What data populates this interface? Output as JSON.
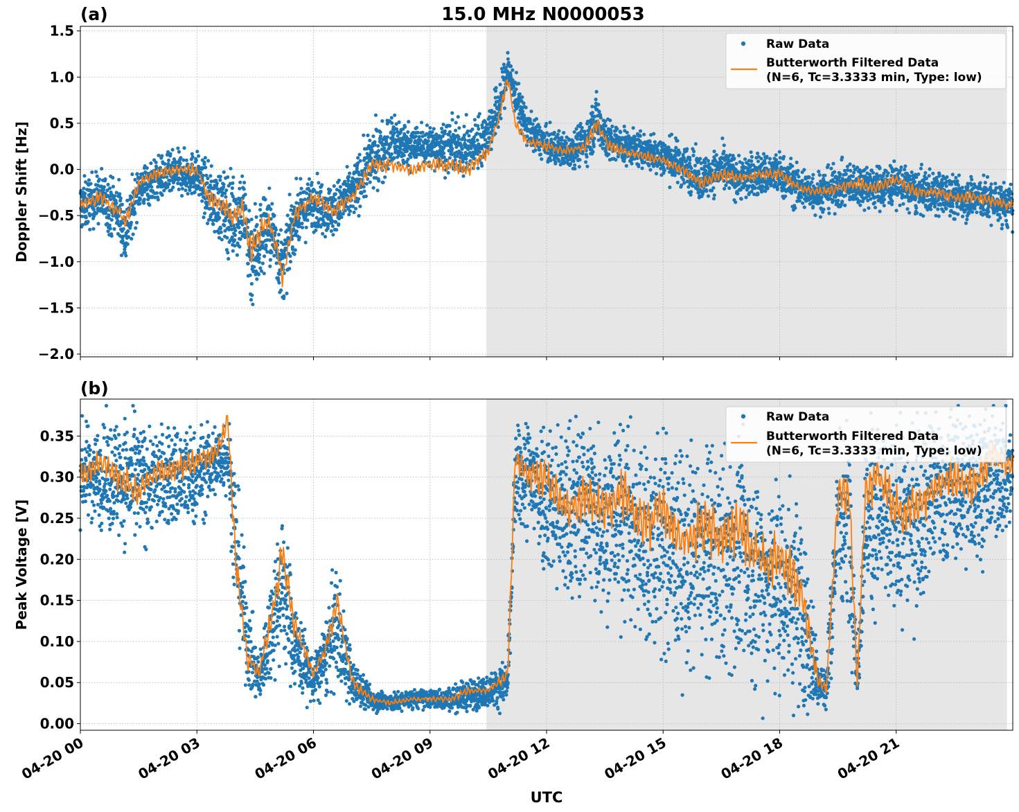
{
  "figure": {
    "title": "15.0 MHz N0000053",
    "xlabel": "UTC"
  },
  "colors": {
    "raw": "#1f77b4",
    "filtered": "#ff7f0e",
    "shade": "#e6e6e6",
    "grid": "#b0b0b0"
  },
  "chart_data": [
    {
      "type": "scatter",
      "panel_label": "(a)",
      "ylabel": "Doppler Shift [Hz]",
      "xlim_hours": [
        0,
        24.0
      ],
      "ylim": [
        -2.03,
        1.55
      ],
      "x_ticks": [
        {
          "h": 0,
          "label": "04-20 00"
        },
        {
          "h": 3,
          "label": "04-20 03"
        },
        {
          "h": 6,
          "label": "04-20 06"
        },
        {
          "h": 9,
          "label": "04-20 09"
        },
        {
          "h": 12,
          "label": "04-20 12"
        },
        {
          "h": 15,
          "label": "04-20 15"
        },
        {
          "h": 18,
          "label": "04-20 18"
        },
        {
          "h": 21,
          "label": "04-20 21"
        }
      ],
      "y_ticks": [
        {
          "v": -2.0,
          "label": "−2.0"
        },
        {
          "v": -1.5,
          "label": "−1.5"
        },
        {
          "v": -1.0,
          "label": "−1.0"
        },
        {
          "v": -0.5,
          "label": "−0.5"
        },
        {
          "v": 0.0,
          "label": "0.0"
        },
        {
          "v": 0.5,
          "label": "0.5"
        },
        {
          "v": 1.0,
          "label": "1.0"
        },
        {
          "v": 1.5,
          "label": "1.5"
        }
      ],
      "shaded_span_hours": [
        10.45,
        23.85
      ],
      "series": [
        {
          "name": "Raw Data",
          "kind": "points",
          "x_hours": [
            0.0,
            0.5,
            1.0,
            1.15,
            1.5,
            2.0,
            2.5,
            3.0,
            3.3,
            3.6,
            3.9,
            4.2,
            4.4,
            4.6,
            4.8,
            5.0,
            5.2,
            5.5,
            6.0,
            6.5,
            7.0,
            7.5,
            8.0,
            8.5,
            9.0,
            9.5,
            10.0,
            10.5,
            10.8,
            11.0,
            11.2,
            11.5,
            12.0,
            12.5,
            13.0,
            13.3,
            13.6,
            14.0,
            14.5,
            15.0,
            15.5,
            16.0,
            16.5,
            17.0,
            17.5,
            18.0,
            18.5,
            19.0,
            19.5,
            20.0,
            20.5,
            21.0,
            21.5,
            22.0,
            22.5,
            23.0,
            23.5,
            24.0
          ],
          "center": [
            -0.4,
            -0.3,
            -0.45,
            -0.7,
            -0.2,
            -0.1,
            -0.05,
            -0.05,
            -0.3,
            -0.4,
            -0.5,
            -0.45,
            -0.95,
            -0.8,
            -0.6,
            -0.75,
            -1.1,
            -0.55,
            -0.35,
            -0.45,
            -0.25,
            0.1,
            0.3,
            0.25,
            0.25,
            0.25,
            0.2,
            0.4,
            0.7,
            1.1,
            0.8,
            0.45,
            0.25,
            0.2,
            0.3,
            0.55,
            0.3,
            0.25,
            0.2,
            0.15,
            0.05,
            -0.1,
            0.0,
            -0.1,
            -0.05,
            -0.05,
            -0.2,
            -0.25,
            -0.2,
            -0.15,
            -0.2,
            -0.15,
            -0.25,
            -0.25,
            -0.3,
            -0.3,
            -0.35,
            -0.4
          ],
          "spread": [
            0.3,
            0.3,
            0.35,
            0.4,
            0.25,
            0.25,
            0.25,
            0.25,
            0.35,
            0.4,
            0.5,
            0.5,
            0.6,
            0.55,
            0.45,
            0.4,
            0.4,
            0.35,
            0.3,
            0.3,
            0.3,
            0.35,
            0.35,
            0.25,
            0.25,
            0.3,
            0.3,
            0.3,
            0.3,
            0.25,
            0.25,
            0.2,
            0.2,
            0.2,
            0.25,
            0.3,
            0.25,
            0.2,
            0.2,
            0.25,
            0.25,
            0.25,
            0.25,
            0.25,
            0.25,
            0.25,
            0.25,
            0.25,
            0.25,
            0.25,
            0.25,
            0.25,
            0.25,
            0.25,
            0.25,
            0.25,
            0.25,
            0.25
          ]
        },
        {
          "name": "Butterworth Filtered Data\n(N=6, Tc=3.3333 min, Type: low)",
          "kind": "line",
          "x_hours": [
            0.0,
            0.5,
            1.0,
            1.15,
            1.5,
            2.0,
            2.5,
            3.0,
            3.3,
            3.6,
            3.9,
            4.2,
            4.4,
            4.6,
            4.8,
            5.0,
            5.2,
            5.5,
            6.0,
            6.5,
            7.0,
            7.5,
            8.0,
            8.5,
            9.0,
            9.5,
            10.0,
            10.5,
            10.8,
            11.0,
            11.2,
            11.5,
            12.0,
            12.5,
            13.0,
            13.3,
            13.6,
            14.0,
            14.5,
            15.0,
            15.5,
            16.0,
            16.5,
            17.0,
            17.5,
            18.0,
            18.5,
            19.0,
            19.5,
            20.0,
            20.5,
            21.0,
            21.5,
            22.0,
            22.5,
            23.0,
            23.5,
            24.0
          ],
          "y": [
            -0.4,
            -0.3,
            -0.45,
            -0.6,
            -0.15,
            -0.05,
            0.0,
            0.0,
            -0.3,
            -0.35,
            -0.5,
            -0.45,
            -0.9,
            -0.7,
            -0.55,
            -0.75,
            -1.2,
            -0.5,
            -0.3,
            -0.45,
            -0.3,
            0.05,
            0.05,
            0.0,
            0.05,
            0.05,
            0.0,
            0.2,
            0.6,
            1.0,
            0.5,
            0.3,
            0.25,
            0.2,
            0.25,
            0.5,
            0.25,
            0.2,
            0.15,
            0.1,
            0.0,
            -0.15,
            -0.05,
            -0.1,
            -0.05,
            -0.05,
            -0.2,
            -0.25,
            -0.2,
            -0.15,
            -0.2,
            -0.1,
            -0.25,
            -0.25,
            -0.3,
            -0.3,
            -0.35,
            -0.4
          ]
        }
      ],
      "legend": {
        "position": "upper right",
        "entries": [
          "Raw Data",
          "Butterworth Filtered Data",
          "(N=6, Tc=3.3333 min, Type: low)"
        ]
      }
    },
    {
      "type": "scatter",
      "panel_label": "(b)",
      "ylabel": "Peak Voltage [V]",
      "xlim_hours": [
        0,
        24.0
      ],
      "ylim": [
        -0.008,
        0.395
      ],
      "x_ticks": [
        {
          "h": 0,
          "label": "04-20 00"
        },
        {
          "h": 3,
          "label": "04-20 03"
        },
        {
          "h": 6,
          "label": "04-20 06"
        },
        {
          "h": 9,
          "label": "04-20 09"
        },
        {
          "h": 12,
          "label": "04-20 12"
        },
        {
          "h": 15,
          "label": "04-20 15"
        },
        {
          "h": 18,
          "label": "04-20 18"
        },
        {
          "h": 21,
          "label": "04-20 21"
        }
      ],
      "y_ticks": [
        {
          "v": 0.0,
          "label": "0.00"
        },
        {
          "v": 0.05,
          "label": "0.05"
        },
        {
          "v": 0.1,
          "label": "0.10"
        },
        {
          "v": 0.15,
          "label": "0.15"
        },
        {
          "v": 0.2,
          "label": "0.20"
        },
        {
          "v": 0.25,
          "label": "0.25"
        },
        {
          "v": 0.3,
          "label": "0.30"
        },
        {
          "v": 0.35,
          "label": "0.35"
        }
      ],
      "shaded_span_hours": [
        10.45,
        23.85
      ],
      "series": [
        {
          "name": "Raw Data",
          "kind": "points",
          "x_hours": [
            0.0,
            0.5,
            1.0,
            1.5,
            2.0,
            2.5,
            3.0,
            3.5,
            3.8,
            4.0,
            4.3,
            4.6,
            5.0,
            5.2,
            5.5,
            6.0,
            6.3,
            6.6,
            7.0,
            7.5,
            8.0,
            8.5,
            9.0,
            9.5,
            10.0,
            10.5,
            11.0,
            11.2,
            11.5,
            12.0,
            12.5,
            13.0,
            13.5,
            14.0,
            14.5,
            15.0,
            15.5,
            16.0,
            16.5,
            17.0,
            17.5,
            18.0,
            18.5,
            19.0,
            19.2,
            19.5,
            19.8,
            20.0,
            20.2,
            20.5,
            21.0,
            21.5,
            22.0,
            22.5,
            23.0,
            23.5,
            24.0
          ],
          "center": [
            0.31,
            0.3,
            0.3,
            0.29,
            0.3,
            0.3,
            0.3,
            0.32,
            0.33,
            0.22,
            0.1,
            0.05,
            0.14,
            0.17,
            0.1,
            0.05,
            0.08,
            0.12,
            0.05,
            0.03,
            0.025,
            0.03,
            0.03,
            0.03,
            0.035,
            0.04,
            0.05,
            0.3,
            0.3,
            0.28,
            0.25,
            0.27,
            0.25,
            0.25,
            0.22,
            0.22,
            0.2,
            0.2,
            0.2,
            0.2,
            0.18,
            0.17,
            0.15,
            0.05,
            0.04,
            0.25,
            0.25,
            0.05,
            0.25,
            0.25,
            0.24,
            0.25,
            0.28,
            0.29,
            0.29,
            0.3,
            0.3
          ],
          "spread": [
            0.06,
            0.06,
            0.08,
            0.08,
            0.06,
            0.07,
            0.06,
            0.05,
            0.05,
            0.1,
            0.06,
            0.03,
            0.08,
            0.1,
            0.06,
            0.03,
            0.05,
            0.08,
            0.03,
            0.015,
            0.012,
            0.012,
            0.012,
            0.015,
            0.02,
            0.02,
            0.03,
            0.06,
            0.08,
            0.1,
            0.12,
            0.12,
            0.12,
            0.12,
            0.14,
            0.14,
            0.14,
            0.14,
            0.14,
            0.14,
            0.14,
            0.14,
            0.14,
            0.04,
            0.03,
            0.12,
            0.12,
            0.03,
            0.12,
            0.12,
            0.12,
            0.12,
            0.1,
            0.1,
            0.1,
            0.08,
            0.08
          ]
        },
        {
          "name": "Butterworth Filtered Data\n(N=6, Tc=3.3333 min, Type: low)",
          "kind": "line",
          "x_hours": [
            0.0,
            0.5,
            1.0,
            1.5,
            2.0,
            2.5,
            3.0,
            3.5,
            3.8,
            4.0,
            4.3,
            4.6,
            5.0,
            5.2,
            5.5,
            6.0,
            6.3,
            6.6,
            7.0,
            7.5,
            8.0,
            8.5,
            9.0,
            9.5,
            10.0,
            10.5,
            11.0,
            11.2,
            11.5,
            12.0,
            12.5,
            13.0,
            13.5,
            14.0,
            14.5,
            15.0,
            15.5,
            16.0,
            16.5,
            17.0,
            17.5,
            18.0,
            18.5,
            19.0,
            19.2,
            19.5,
            19.8,
            20.0,
            20.2,
            20.5,
            21.0,
            21.5,
            22.0,
            22.5,
            23.0,
            23.5,
            24.0
          ],
          "y": [
            0.3,
            0.32,
            0.3,
            0.28,
            0.31,
            0.31,
            0.32,
            0.33,
            0.37,
            0.2,
            0.08,
            0.06,
            0.15,
            0.21,
            0.12,
            0.06,
            0.09,
            0.15,
            0.05,
            0.03,
            0.025,
            0.03,
            0.03,
            0.03,
            0.04,
            0.04,
            0.06,
            0.33,
            0.3,
            0.3,
            0.26,
            0.28,
            0.26,
            0.28,
            0.24,
            0.26,
            0.22,
            0.24,
            0.23,
            0.24,
            0.2,
            0.2,
            0.17,
            0.05,
            0.04,
            0.28,
            0.27,
            0.05,
            0.28,
            0.3,
            0.26,
            0.26,
            0.29,
            0.3,
            0.29,
            0.33,
            0.31
          ]
        }
      ],
      "legend": {
        "position": "upper right",
        "entries": [
          "Raw Data",
          "Butterworth Filtered Data",
          "(N=6, Tc=3.3333 min, Type: low)"
        ]
      }
    }
  ]
}
